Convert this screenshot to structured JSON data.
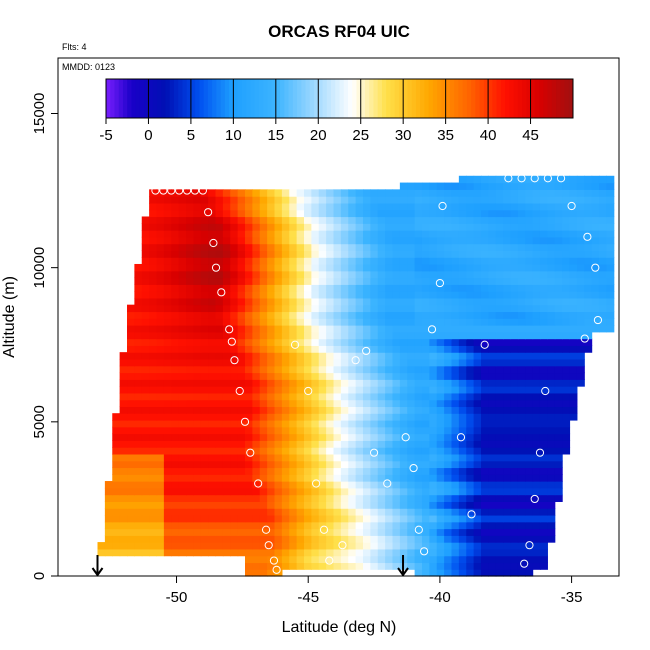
{
  "chart_data": {
    "type": "heatmap",
    "title": "ORCAS RF04 UIC",
    "annotations": [
      "Flts: 4",
      "MMDD: 0123"
    ],
    "xlabel": "Latitude (deg N)",
    "ylabel": "Altitude (m)",
    "xlim": [
      -54.5,
      -33.2
    ],
    "ylim": [
      0,
      16800
    ],
    "x_ticks": [
      -50,
      -45,
      -40,
      -35
    ],
    "x_tick_labels": [
      "-50",
      "-45",
      "-40",
      "-35"
    ],
    "y_ticks": [
      0,
      5000,
      10000,
      15000
    ],
    "y_tick_labels": [
      "0",
      "5000",
      "10000",
      "15000"
    ],
    "colorbar": {
      "range": [
        -5,
        50
      ],
      "ticks": [
        -5,
        0,
        5,
        10,
        15,
        20,
        25,
        30,
        35,
        40,
        45
      ],
      "tick_labels": [
        "-5",
        "0",
        "5",
        "10",
        "15",
        "20",
        "25",
        "30",
        "35",
        "40",
        "45"
      ],
      "stops": [
        {
          "value": -5,
          "color": "#7a1fff"
        },
        {
          "value": -2,
          "color": "#1a00c8"
        },
        {
          "value": 2,
          "color": "#0010b4"
        },
        {
          "value": 6,
          "color": "#0050f0"
        },
        {
          "value": 10,
          "color": "#1ea0ff"
        },
        {
          "value": 15,
          "color": "#3cb4ff"
        },
        {
          "value": 20,
          "color": "#a8dcff"
        },
        {
          "value": 24,
          "color": "#ffffff"
        },
        {
          "value": 28,
          "color": "#ffe04a"
        },
        {
          "value": 33,
          "color": "#ffa800"
        },
        {
          "value": 38,
          "color": "#ff6000"
        },
        {
          "value": 42,
          "color": "#ff1000"
        },
        {
          "value": 46,
          "color": "#d80000"
        },
        {
          "value": 50,
          "color": "#a01010"
        }
      ]
    },
    "field_extent": {
      "lat_min": -53.0,
      "lat_max": -33.4,
      "alt_min": 0,
      "alt_max": 13000,
      "top_left_corner_lat": -51.0,
      "bottom_left_corner_lat": -53.0,
      "top_left_alt": 12500,
      "left_edge_mid_alt": 7500,
      "top_right_alt": 13000,
      "bottom_right_lat": -36.0
    },
    "profile_markers": [
      {
        "lat": -53.0,
        "label": "down-arrow"
      },
      {
        "lat": -41.4,
        "label": "down-arrow"
      }
    ],
    "sample_points": [
      {
        "lat": -50.8,
        "alt": 12500
      },
      {
        "lat": -50.5,
        "alt": 12500
      },
      {
        "lat": -50.2,
        "alt": 12500
      },
      {
        "lat": -49.9,
        "alt": 12500
      },
      {
        "lat": -49.6,
        "alt": 12500
      },
      {
        "lat": -49.3,
        "alt": 12500
      },
      {
        "lat": -49.0,
        "alt": 12500
      },
      {
        "lat": -48.8,
        "alt": 11800
      },
      {
        "lat": -48.6,
        "alt": 10800
      },
      {
        "lat": -48.5,
        "alt": 10000
      },
      {
        "lat": -48.3,
        "alt": 9200
      },
      {
        "lat": -48.0,
        "alt": 8000
      },
      {
        "lat": -47.9,
        "alt": 7600
      },
      {
        "lat": -47.8,
        "alt": 7000
      },
      {
        "lat": -47.6,
        "alt": 6000
      },
      {
        "lat": -47.4,
        "alt": 5000
      },
      {
        "lat": -47.2,
        "alt": 4000
      },
      {
        "lat": -46.9,
        "alt": 3000
      },
      {
        "lat": -46.6,
        "alt": 1500
      },
      {
        "lat": -46.5,
        "alt": 1000
      },
      {
        "lat": -46.3,
        "alt": 500
      },
      {
        "lat": -46.2,
        "alt": 200
      },
      {
        "lat": -45.5,
        "alt": 7500
      },
      {
        "lat": -45.0,
        "alt": 6000
      },
      {
        "lat": -44.7,
        "alt": 3000
      },
      {
        "lat": -44.4,
        "alt": 1500
      },
      {
        "lat": -44.2,
        "alt": 500
      },
      {
        "lat": -43.7,
        "alt": 1000
      },
      {
        "lat": -43.2,
        "alt": 7000
      },
      {
        "lat": -42.8,
        "alt": 7300
      },
      {
        "lat": -42.5,
        "alt": 4000
      },
      {
        "lat": -42.0,
        "alt": 3000
      },
      {
        "lat": -41.3,
        "alt": 4500
      },
      {
        "lat": -41.0,
        "alt": 3500
      },
      {
        "lat": -40.8,
        "alt": 1500
      },
      {
        "lat": -40.6,
        "alt": 800
      },
      {
        "lat": -40.3,
        "alt": 8000
      },
      {
        "lat": -40.0,
        "alt": 9500
      },
      {
        "lat": -39.9,
        "alt": 12000
      },
      {
        "lat": -39.2,
        "alt": 4500
      },
      {
        "lat": -38.8,
        "alt": 2000
      },
      {
        "lat": -38.3,
        "alt": 7500
      },
      {
        "lat": -37.4,
        "alt": 12900
      },
      {
        "lat": -36.9,
        "alt": 12900
      },
      {
        "lat": -36.4,
        "alt": 12900
      },
      {
        "lat": -35.9,
        "alt": 12900
      },
      {
        "lat": -35.4,
        "alt": 12900
      },
      {
        "lat": -36.0,
        "alt": 6000
      },
      {
        "lat": -36.2,
        "alt": 4000
      },
      {
        "lat": -36.4,
        "alt": 2500
      },
      {
        "lat": -36.6,
        "alt": 1000
      },
      {
        "lat": -36.8,
        "alt": 400
      },
      {
        "lat": -35.0,
        "alt": 12000
      },
      {
        "lat": -34.4,
        "alt": 11000
      },
      {
        "lat": -34.1,
        "alt": 10000
      },
      {
        "lat": -34.0,
        "alt": 8300
      },
      {
        "lat": -34.5,
        "alt": 7700
      }
    ],
    "grid": false,
    "legend": "colorbar top inside plot"
  }
}
